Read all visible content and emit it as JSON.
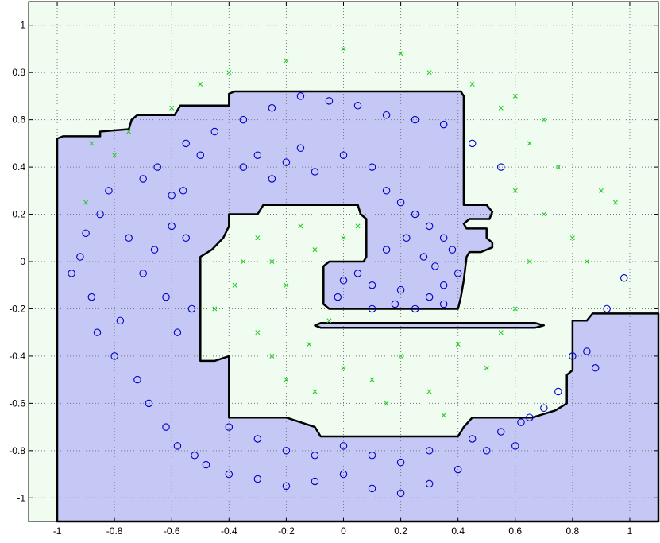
{
  "chart_data": {
    "type": "scatter",
    "title": "",
    "xlabel": "",
    "ylabel": "",
    "xlim": [
      -1.1,
      1.1
    ],
    "ylim": [
      -1.1,
      1.1
    ],
    "grid": true,
    "legend": "none",
    "x_ticks": [
      {
        "v": -1,
        "label": "-1"
      },
      {
        "v": -0.8,
        "label": "-0.8"
      },
      {
        "v": -0.6,
        "label": "-0.6"
      },
      {
        "v": -0.4,
        "label": "-0.4"
      },
      {
        "v": -0.2,
        "label": "-0.2"
      },
      {
        "v": 0,
        "label": "0"
      },
      {
        "v": 0.2,
        "label": "0.2"
      },
      {
        "v": 0.4,
        "label": "0.4"
      },
      {
        "v": 0.6,
        "label": "0.6"
      },
      {
        "v": 0.8,
        "label": "0.8"
      },
      {
        "v": 1,
        "label": "1"
      }
    ],
    "y_ticks": [
      {
        "v": 1,
        "label": "1"
      },
      {
        "v": 0.8,
        "label": "0.8"
      },
      {
        "v": 0.6,
        "label": "0.6"
      },
      {
        "v": 0.4,
        "label": "0.4"
      },
      {
        "v": 0.2,
        "label": "0.2"
      },
      {
        "v": 0,
        "label": "0"
      },
      {
        "v": -0.2,
        "label": "-0.2"
      },
      {
        "v": -0.4,
        "label": "-0.4"
      },
      {
        "v": -0.6,
        "label": "-0.6"
      },
      {
        "v": -0.8,
        "label": "-0.8"
      },
      {
        "v": -1,
        "label": "-1"
      }
    ],
    "colors": {
      "class_a_region": "#c5c8f5",
      "class_b_region": "#effcef",
      "class_a_marker": "#0000cc",
      "class_b_marker": "#22cc22",
      "boundary": "#000000",
      "grid": "#7a7a7a"
    },
    "decision_boundary": [
      {
        "name": "class_a_outer_region",
        "points": [
          [
            -1.0,
            -1.1
          ],
          [
            -1.0,
            0.52
          ],
          [
            -0.98,
            0.53
          ],
          [
            -0.85,
            0.53
          ],
          [
            -0.85,
            0.55
          ],
          [
            -0.75,
            0.56
          ],
          [
            -0.74,
            0.6
          ],
          [
            -0.72,
            0.62
          ],
          [
            -0.59,
            0.62
          ],
          [
            -0.57,
            0.66
          ],
          [
            -0.4,
            0.66
          ],
          [
            -0.4,
            0.71
          ],
          [
            -0.38,
            0.72
          ],
          [
            0.41,
            0.72
          ],
          [
            0.42,
            0.7
          ],
          [
            0.42,
            0.24
          ],
          [
            0.5,
            0.24
          ],
          [
            0.52,
            0.21
          ],
          [
            0.51,
            0.18
          ],
          [
            0.44,
            0.18
          ],
          [
            0.42,
            0.16
          ],
          [
            0.43,
            0.14
          ],
          [
            0.5,
            0.14
          ],
          [
            0.5,
            0.1
          ],
          [
            0.52,
            0.08
          ],
          [
            0.52,
            0.06
          ],
          [
            0.48,
            0.04
          ],
          [
            0.44,
            0.04
          ],
          [
            0.43,
            0.02
          ],
          [
            0.42,
            -0.08
          ],
          [
            0.41,
            -0.15
          ],
          [
            0.4,
            -0.2
          ],
          [
            -0.05,
            -0.2
          ],
          [
            -0.07,
            -0.18
          ],
          [
            -0.07,
            -0.02
          ],
          [
            -0.05,
            0
          ],
          [
            0.07,
            0
          ],
          [
            0.08,
            0.02
          ],
          [
            0.08,
            0.18
          ],
          [
            0.06,
            0.2
          ],
          [
            0.05,
            0.24
          ],
          [
            -0.28,
            0.24
          ],
          [
            -0.3,
            0.2
          ],
          [
            -0.4,
            0.2
          ],
          [
            -0.4,
            0.15
          ],
          [
            -0.42,
            0.1
          ],
          [
            -0.46,
            0.05
          ],
          [
            -0.5,
            0.02
          ],
          [
            -0.5,
            -0.42
          ],
          [
            -0.45,
            -0.42
          ],
          [
            -0.4,
            -0.4
          ],
          [
            -0.4,
            -0.66
          ],
          [
            -0.2,
            -0.66
          ],
          [
            -0.1,
            -0.7
          ],
          [
            -0.08,
            -0.74
          ],
          [
            0.4,
            -0.74
          ],
          [
            0.42,
            -0.7
          ],
          [
            0.45,
            -0.66
          ],
          [
            0.66,
            -0.66
          ],
          [
            0.74,
            -0.63
          ],
          [
            0.78,
            -0.6
          ],
          [
            0.78,
            -0.48
          ],
          [
            0.8,
            -0.46
          ],
          [
            0.8,
            -0.25
          ],
          [
            0.85,
            -0.25
          ],
          [
            0.87,
            -0.22
          ],
          [
            1.1,
            -0.22
          ],
          [
            1.1,
            -1.1
          ]
        ]
      },
      {
        "name": "class_a_sliver_region",
        "points": [
          [
            -0.08,
            -0.26
          ],
          [
            0.67,
            -0.26
          ],
          [
            0.7,
            -0.27
          ],
          [
            0.67,
            -0.28
          ],
          [
            -0.08,
            -0.28
          ],
          [
            -0.1,
            -0.27
          ]
        ]
      }
    ],
    "series": [
      {
        "marker": "o",
        "color": "#0000cc",
        "points": [
          [
            -0.95,
            -0.05
          ],
          [
            -0.92,
            0.02
          ],
          [
            -0.88,
            -0.15
          ],
          [
            -0.9,
            0.12
          ],
          [
            -0.86,
            -0.3
          ],
          [
            -0.85,
            0.2
          ],
          [
            -0.8,
            -0.4
          ],
          [
            -0.82,
            0.3
          ],
          [
            -0.78,
            -0.25
          ],
          [
            -0.75,
            0.1
          ],
          [
            -0.72,
            -0.5
          ],
          [
            -0.7,
            0.35
          ],
          [
            -0.68,
            -0.6
          ],
          [
            -0.65,
            0.4
          ],
          [
            -0.62,
            -0.7
          ],
          [
            -0.6,
            0.28
          ],
          [
            -0.58,
            -0.78
          ],
          [
            -0.55,
            0.5
          ],
          [
            -0.52,
            -0.82
          ],
          [
            -0.5,
            0.45
          ],
          [
            -0.48,
            -0.86
          ],
          [
            -0.45,
            0.55
          ],
          [
            -0.4,
            -0.9
          ],
          [
            -0.35,
            0.6
          ],
          [
            -0.3,
            -0.92
          ],
          [
            -0.25,
            0.65
          ],
          [
            -0.2,
            -0.95
          ],
          [
            -0.15,
            0.7
          ],
          [
            -0.1,
            -0.93
          ],
          [
            -0.05,
            0.68
          ],
          [
            0.0,
            -0.9
          ],
          [
            0.05,
            0.66
          ],
          [
            0.1,
            -0.96
          ],
          [
            0.15,
            0.62
          ],
          [
            0.2,
            -0.98
          ],
          [
            0.25,
            0.6
          ],
          [
            0.3,
            -0.94
          ],
          [
            0.35,
            0.58
          ],
          [
            0.4,
            -0.88
          ],
          [
            0.45,
            0.5
          ],
          [
            0.5,
            -0.8
          ],
          [
            0.55,
            0.4
          ],
          [
            0.6,
            -0.78
          ],
          [
            0.62,
            -0.68
          ],
          [
            0.65,
            -0.66
          ],
          [
            0.7,
            -0.62
          ],
          [
            0.75,
            -0.55
          ],
          [
            0.8,
            -0.4
          ],
          [
            0.85,
            -0.38
          ],
          [
            0.88,
            -0.45
          ],
          [
            0.92,
            -0.2
          ],
          [
            0.98,
            -0.07
          ],
          [
            -0.7,
            -0.05
          ],
          [
            -0.66,
            0.05
          ],
          [
            -0.62,
            -0.15
          ],
          [
            -0.6,
            0.15
          ],
          [
            -0.58,
            -0.3
          ],
          [
            -0.55,
            0.1
          ],
          [
            -0.53,
            -0.2
          ],
          [
            -0.56,
            0.3
          ],
          [
            -0.35,
            0.4
          ],
          [
            -0.3,
            0.45
          ],
          [
            -0.25,
            0.35
          ],
          [
            -0.2,
            0.42
          ],
          [
            -0.15,
            0.48
          ],
          [
            -0.1,
            0.38
          ],
          [
            0.0,
            0.45
          ],
          [
            0.1,
            0.4
          ],
          [
            0.15,
            0.3
          ],
          [
            0.2,
            0.25
          ],
          [
            0.25,
            0.2
          ],
          [
            0.3,
            0.15
          ],
          [
            0.35,
            0.1
          ],
          [
            0.38,
            0.05
          ],
          [
            0.4,
            -0.05
          ],
          [
            0.35,
            -0.1
          ],
          [
            0.3,
            -0.15
          ],
          [
            0.2,
            -0.12
          ],
          [
            0.1,
            -0.1
          ],
          [
            0.0,
            -0.08
          ],
          [
            -0.02,
            -0.15
          ],
          [
            0.05,
            -0.05
          ],
          [
            0.15,
            0.05
          ],
          [
            0.22,
            0.1
          ],
          [
            0.28,
            0.02
          ],
          [
            0.32,
            -0.02
          ],
          [
            0.18,
            -0.18
          ],
          [
            0.1,
            -0.2
          ],
          [
            0.25,
            -0.2
          ],
          [
            0.35,
            -0.18
          ],
          [
            -0.4,
            -0.7
          ],
          [
            -0.3,
            -0.75
          ],
          [
            -0.2,
            -0.8
          ],
          [
            -0.1,
            -0.82
          ],
          [
            0.0,
            -0.78
          ],
          [
            0.1,
            -0.82
          ],
          [
            0.2,
            -0.85
          ],
          [
            0.3,
            -0.8
          ],
          [
            0.45,
            -0.75
          ],
          [
            0.55,
            -0.72
          ]
        ]
      },
      {
        "marker": "x",
        "color": "#22cc22",
        "points": [
          [
            -0.3,
            0.1
          ],
          [
            -0.25,
            0.0
          ],
          [
            -0.2,
            -0.1
          ],
          [
            -0.15,
            0.15
          ],
          [
            -0.1,
            0.05
          ],
          [
            -0.05,
            -0.25
          ],
          [
            0.0,
            0.1
          ],
          [
            0.05,
            0.15
          ],
          [
            -0.3,
            -0.3
          ],
          [
            -0.25,
            -0.4
          ],
          [
            -0.2,
            -0.5
          ],
          [
            -0.1,
            -0.55
          ],
          [
            0.0,
            -0.45
          ],
          [
            0.1,
            -0.5
          ],
          [
            0.2,
            -0.4
          ],
          [
            0.3,
            -0.55
          ],
          [
            0.4,
            -0.35
          ],
          [
            0.5,
            -0.45
          ],
          [
            0.55,
            -0.3
          ],
          [
            0.6,
            -0.2
          ],
          [
            0.65,
            0.0
          ],
          [
            0.7,
            0.2
          ],
          [
            0.6,
            0.3
          ],
          [
            0.65,
            0.5
          ],
          [
            0.7,
            0.6
          ],
          [
            0.75,
            0.4
          ],
          [
            0.8,
            0.1
          ],
          [
            0.85,
            0.0
          ],
          [
            0.9,
            0.3
          ],
          [
            0.95,
            0.25
          ],
          [
            -0.6,
            0.65
          ],
          [
            -0.5,
            0.75
          ],
          [
            -0.4,
            0.8
          ],
          [
            -0.2,
            0.85
          ],
          [
            0.0,
            0.9
          ],
          [
            0.2,
            0.88
          ],
          [
            0.3,
            0.8
          ],
          [
            0.45,
            0.75
          ],
          [
            0.55,
            0.65
          ],
          [
            0.6,
            0.7
          ],
          [
            -0.8,
            0.45
          ],
          [
            -0.9,
            0.25
          ],
          [
            -0.88,
            0.5
          ],
          [
            -0.75,
            0.55
          ],
          [
            -0.45,
            -0.2
          ],
          [
            -0.38,
            -0.1
          ],
          [
            -0.35,
            0.0
          ],
          [
            -0.12,
            -0.35
          ],
          [
            0.15,
            -0.6
          ],
          [
            0.35,
            -0.65
          ]
        ]
      }
    ]
  }
}
